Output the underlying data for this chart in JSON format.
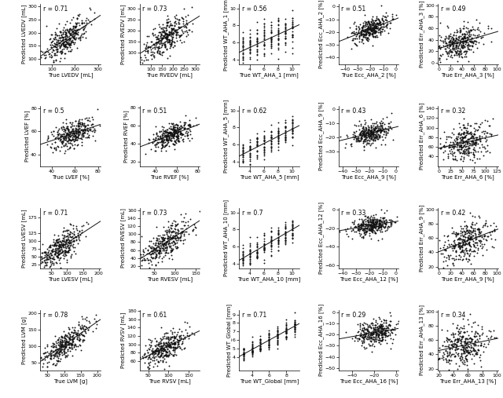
{
  "plots": [
    {
      "row": 0,
      "col": 0,
      "r": 0.71,
      "xlabel": "True LVEDV [mL]",
      "ylabel": "Predicted LVEDV [mL]",
      "xlim": [
        50,
        310
      ],
      "ylim": [
        80,
        310
      ],
      "xticks": [
        100,
        200,
        300
      ],
      "yticks": [
        100,
        150,
        200,
        250,
        300
      ],
      "xmean": 160,
      "xstd": 48,
      "ymean": 175,
      "ystd": 42,
      "slope": 0.62,
      "intercept": 76,
      "n_points": 350
    },
    {
      "row": 0,
      "col": 1,
      "r": 0.73,
      "xlabel": "True RVEDV [mL]",
      "ylabel": "Predicted RVEDV [mL]",
      "xlim": [
        50,
        320
      ],
      "ylim": [
        50,
        320
      ],
      "xticks": [
        100,
        150,
        200,
        250,
        300
      ],
      "yticks": [
        100,
        150,
        200,
        250,
        300
      ],
      "xmean": 175,
      "xstd": 52,
      "ymean": 175,
      "ystd": 48,
      "slope": 0.67,
      "intercept": 58,
      "n_points": 350
    },
    {
      "row": 0,
      "col": 2,
      "r": 0.56,
      "xlabel": "True WT_AHA_1 [mm]",
      "ylabel": "Predicted WT_AHA_1 [mm]",
      "xlim": [
        2.5,
        11
      ],
      "ylim": [
        3.5,
        10.5
      ],
      "xticks": [
        4,
        6,
        8,
        10
      ],
      "yticks": [
        4,
        6,
        8,
        10
      ],
      "x_discrete": [
        3,
        4,
        5,
        6,
        7,
        8,
        9,
        10
      ],
      "ycenter_slope": 0.38,
      "ycenter_int": 3.9,
      "y_spread": 1.0,
      "n_per_bin": 25,
      "slope": 0.38,
      "intercept": 3.9,
      "vertical_lines": true
    },
    {
      "row": 0,
      "col": 3,
      "r": 0.51,
      "xlabel": "True Ecc_AHA_2 [%]",
      "ylabel": "Predicted Ecc_AHA_2 [%]",
      "xlim": [
        -45,
        2
      ],
      "ylim": [
        -45,
        2
      ],
      "xticks": [
        -40,
        -30,
        -20,
        -10,
        0
      ],
      "yticks": [
        -40,
        -30,
        -20,
        -10,
        0
      ],
      "xmean": -20,
      "xstd": 7,
      "ymean": -18,
      "ystd": 5,
      "slope": 0.37,
      "intercept": -10.6,
      "n_points": 350
    },
    {
      "row": 0,
      "col": 4,
      "r": 0.49,
      "xlabel": "True Err_AHA_3 [%]",
      "ylabel": "Predicted Err_AHA_3 [%]",
      "xlim": [
        -2,
        102
      ],
      "ylim": [
        -2,
        102
      ],
      "xticks": [
        0,
        20,
        40,
        60,
        80,
        100
      ],
      "yticks": [
        0,
        20,
        40,
        60,
        80,
        100
      ],
      "xmean": 35,
      "xstd": 20,
      "ymean": 35,
      "ystd": 15,
      "slope": 0.37,
      "intercept": 22,
      "n_points": 350
    },
    {
      "row": 1,
      "col": 0,
      "r": 0.5,
      "xlabel": "True LVEF [%]",
      "ylabel": "Predicted LVEF [%]",
      "xlim": [
        30,
        82
      ],
      "ylim": [
        30,
        82
      ],
      "xticks": [
        40,
        60,
        80
      ],
      "yticks": [
        40,
        60,
        80
      ],
      "xmean": 58,
      "xstd": 9,
      "ymean": 58,
      "ystd": 6,
      "slope": 0.33,
      "intercept": 39,
      "n_points": 350
    },
    {
      "row": 1,
      "col": 1,
      "r": 0.51,
      "xlabel": "True RVEF [%]",
      "ylabel": "Predicted RVEF [%]",
      "xlim": [
        25,
        82
      ],
      "ylim": [
        15,
        82
      ],
      "xticks": [
        40,
        60,
        80
      ],
      "yticks": [
        20,
        40,
        60,
        80
      ],
      "xmean": 54,
      "xstd": 9,
      "ymean": 50,
      "ystd": 7,
      "slope": 0.38,
      "intercept": 30,
      "n_points": 350
    },
    {
      "row": 1,
      "col": 2,
      "r": 0.62,
      "xlabel": "True WT_AHA_5 [mm]",
      "ylabel": "Predicted WT_AHA_5 [mm]",
      "xlim": [
        2.5,
        11
      ],
      "ylim": [
        3.5,
        10.5
      ],
      "xticks": [
        4,
        6,
        8,
        10
      ],
      "yticks": [
        4,
        6,
        8,
        10
      ],
      "x_discrete": [
        3,
        4,
        5,
        6,
        7,
        8,
        9,
        10
      ],
      "ycenter_slope": 0.42,
      "ycenter_int": 3.6,
      "y_spread": 0.85,
      "n_per_bin": 25,
      "slope": 0.42,
      "intercept": 3.6,
      "vertical_lines": true
    },
    {
      "row": 1,
      "col": 3,
      "r": 0.43,
      "xlabel": "True Ecc_AHA_9 [%]",
      "ylabel": "Predicted Ecc_AHA_9 [%]",
      "xlim": [
        -43,
        2
      ],
      "ylim": [
        -40,
        2
      ],
      "xticks": [
        -40,
        -30,
        -20,
        -10,
        0
      ],
      "yticks": [
        -30,
        -20,
        -10,
        0
      ],
      "xmean": -19,
      "xstd": 7,
      "ymean": -17,
      "ystd": 4,
      "slope": 0.25,
      "intercept": -12,
      "n_points": 350
    },
    {
      "row": 1,
      "col": 4,
      "r": 0.32,
      "xlabel": "True Err_AHA_6 [%]",
      "ylabel": "Predicted Err_AHA_6 [%]",
      "xlim": [
        -2,
        127
      ],
      "ylim": [
        20,
        145
      ],
      "xticks": [
        0,
        25,
        50,
        75,
        100,
        125
      ],
      "yticks": [
        40,
        60,
        80,
        100,
        120,
        140
      ],
      "xmean": 55,
      "xstd": 25,
      "ymean": 70,
      "ystd": 18,
      "slope": 0.22,
      "intercept": 58,
      "n_points": 350
    },
    {
      "row": 2,
      "col": 0,
      "r": 0.71,
      "xlabel": "True LVESV [mL]",
      "ylabel": "Predicted LVESV [mL]",
      "xlim": [
        15,
        205
      ],
      "ylim": [
        15,
        205
      ],
      "xticks": [
        50,
        100,
        150,
        200
      ],
      "yticks": [
        25,
        50,
        75,
        100,
        125,
        175
      ],
      "xmean": 75,
      "xstd": 35,
      "ymean": 78,
      "ystd": 32,
      "slope": 0.62,
      "intercept": 31,
      "n_points": 350
    },
    {
      "row": 2,
      "col": 1,
      "r": 0.73,
      "xlabel": "True RVESV [mL]",
      "ylabel": "Predicted RVESV [mL]",
      "xlim": [
        15,
        160
      ],
      "ylim": [
        15,
        165
      ],
      "xticks": [
        50,
        100,
        150
      ],
      "yticks": [
        20,
        40,
        60,
        80,
        100,
        120,
        140,
        160
      ],
      "xmean": 78,
      "xstd": 28,
      "ymean": 80,
      "ystd": 25,
      "slope": 0.65,
      "intercept": 29,
      "n_points": 350
    },
    {
      "row": 2,
      "col": 2,
      "r": 0.7,
      "xlabel": "True WT_AHA_10 [mm]",
      "ylabel": "Predicted WT_AHA_10 [mm]",
      "xlim": [
        2.5,
        11
      ],
      "ylim": [
        3.5,
        10.5
      ],
      "xticks": [
        4,
        6,
        8,
        10
      ],
      "yticks": [
        4,
        6,
        8,
        10
      ],
      "x_discrete": [
        3,
        4,
        5,
        6,
        7,
        8,
        9,
        10
      ],
      "ycenter_slope": 0.48,
      "ycenter_int": 3.2,
      "y_spread": 0.7,
      "n_per_bin": 25,
      "slope": 0.48,
      "intercept": 3.2,
      "vertical_lines": true
    },
    {
      "row": 2,
      "col": 3,
      "r": 0.33,
      "xlabel": "True Ecc_AHA_12 [%]",
      "ylabel": "Predicted Ecc_AHA_12 [%]",
      "xlim": [
        -43,
        2
      ],
      "ylim": [
        -63,
        2
      ],
      "xticks": [
        -40,
        -30,
        -20,
        -10,
        0
      ],
      "yticks": [
        -60,
        -40,
        -20,
        0
      ],
      "xmean": -18,
      "xstd": 7,
      "ymean": -17,
      "ystd": 5,
      "slope": 0.18,
      "intercept": -13.8,
      "n_points": 350
    },
    {
      "row": 2,
      "col": 4,
      "r": 0.42,
      "xlabel": "True Err_AHA_9 [%]",
      "ylabel": "Predicted Err_AHA_9 [%]",
      "xlim": [
        -2,
        102
      ],
      "ylim": [
        18,
        102
      ],
      "xticks": [
        0,
        20,
        40,
        60,
        80,
        100
      ],
      "yticks": [
        20,
        40,
        60,
        80,
        100
      ],
      "xmean": 48,
      "xstd": 22,
      "ymean": 55,
      "ystd": 15,
      "slope": 0.28,
      "intercept": 42,
      "n_points": 350
    },
    {
      "row": 3,
      "col": 0,
      "r": 0.78,
      "xlabel": "True LVM [g]",
      "ylabel": "Predicted LVM [g]",
      "xlim": [
        28,
        210
      ],
      "ylim": [
        28,
        210
      ],
      "xticks": [
        50,
        100,
        150,
        200
      ],
      "yticks": [
        50,
        100,
        150,
        200
      ],
      "xmean": 105,
      "xstd": 36,
      "ymean": 108,
      "ystd": 32,
      "slope": 0.7,
      "intercept": 34,
      "n_points": 350
    },
    {
      "row": 3,
      "col": 1,
      "r": 0.61,
      "xlabel": "True RVSV [mL]",
      "ylabel": "Predicted RVSV [mL]",
      "xlim": [
        28,
        178
      ],
      "ylim": [
        38,
        182
      ],
      "xticks": [
        50,
        100,
        150
      ],
      "yticks": [
        60,
        80,
        100,
        120,
        140,
        160,
        180
      ],
      "xmean": 90,
      "xstd": 28,
      "ymean": 92,
      "ystd": 22,
      "slope": 0.48,
      "intercept": 49,
      "n_points": 350
    },
    {
      "row": 3,
      "col": 2,
      "r": 0.71,
      "xlabel": "True WT_Global [mm]",
      "ylabel": "Predicted WT_Global [mm]",
      "xlim": [
        2.5,
        9.5
      ],
      "ylim": [
        2.5,
        9.5
      ],
      "xticks": [
        4,
        6,
        8
      ],
      "yticks": [
        4,
        5,
        6,
        7,
        8,
        9
      ],
      "x_discrete": [
        3,
        4,
        5,
        6,
        7,
        8,
        9
      ],
      "ycenter_slope": 0.55,
      "ycenter_int": 2.7,
      "y_spread": 0.55,
      "n_per_bin": 30,
      "slope": 0.55,
      "intercept": 2.7,
      "vertical_lines": true
    },
    {
      "row": 3,
      "col": 3,
      "r": 0.29,
      "xlabel": "True Ecc_AHA_16 [%]",
      "ylabel": "Predicted Ecc_AHA_16 [%]",
      "xlim": [
        -52,
        2
      ],
      "ylim": [
        -52,
        2
      ],
      "xticks": [
        -40,
        -20,
        0
      ],
      "yticks": [
        -50,
        -40,
        -30,
        -20,
        -10,
        0
      ],
      "xmean": -19,
      "xstd": 9,
      "ymean": -18,
      "ystd": 6,
      "slope": 0.19,
      "intercept": -14.4,
      "n_points": 350
    },
    {
      "row": 3,
      "col": 4,
      "r": 0.34,
      "xlabel": "True Err_AHA_13 [%]",
      "ylabel": "Predicted Err_AHA_13 [%]",
      "xlim": [
        18,
        102
      ],
      "ylim": [
        18,
        102
      ],
      "xticks": [
        20,
        40,
        60,
        80,
        100
      ],
      "yticks": [
        20,
        40,
        60,
        80,
        100
      ],
      "xmean": 52,
      "xstd": 18,
      "ymean": 52,
      "ystd": 15,
      "slope": 0.28,
      "intercept": 37,
      "n_points": 350
    }
  ],
  "nrows": 4,
  "ncols": 5,
  "seed": 42,
  "marker_size": 1.8,
  "marker_color": "#111111",
  "line_color": "#111111",
  "font_size": 5.0,
  "r_font_size": 5.5,
  "figsize": [
    6.4,
    5.07
  ],
  "dpi": 100
}
